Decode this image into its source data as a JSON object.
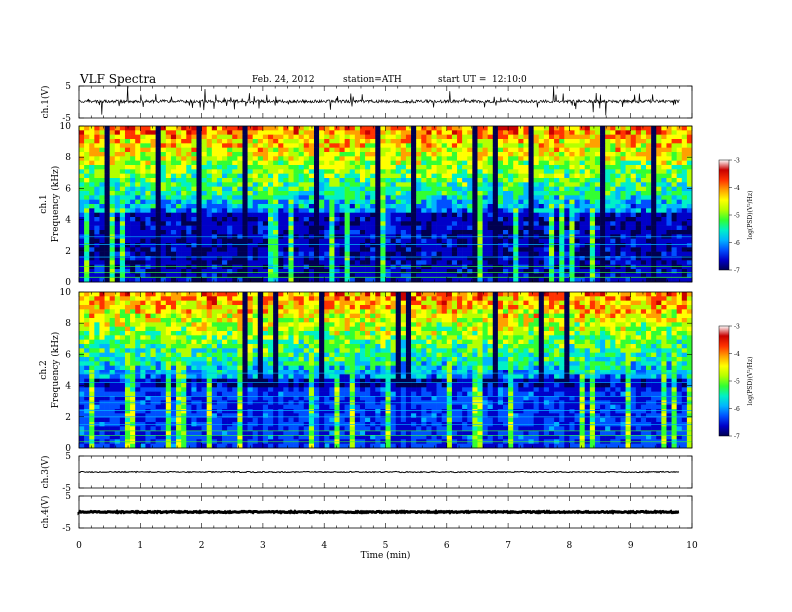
{
  "header": {
    "title": "VLF  Spectra",
    "date": "Feb. 24, 2012",
    "station": "station=ATH",
    "start_label": "start  UT  =",
    "start_value": "12:10:0"
  },
  "colors": {
    "colormap": [
      "#000050",
      "#0000c8",
      "#0050ff",
      "#00b4ff",
      "#00f0c8",
      "#32ff32",
      "#b4ff00",
      "#ffff00",
      "#ffa000",
      "#ff3200",
      "#c80000",
      "#ffffff"
    ]
  },
  "chart_data": [
    {
      "type": "line",
      "panel": "ch1-waveform",
      "ylabel": "ch.1(V)",
      "ylim": [
        -5,
        5
      ],
      "yticks": [
        5,
        -5
      ],
      "x": [
        0,
        9.8
      ],
      "baseline": 0.2,
      "xlim": [
        0,
        10
      ]
    },
    {
      "type": "heatmap",
      "panel": "ch1-spectrogram",
      "ylabel_channel": "ch.1",
      "ylabel": "Frequency  (kHz)",
      "ylim": [
        0,
        10
      ],
      "yticks": [
        0,
        2,
        4,
        6,
        8,
        10
      ],
      "xlim": [
        0,
        10
      ],
      "colorbar": {
        "label": "log(PSD)(V²/Hz)",
        "range": [
          -7,
          -3
        ],
        "ticks": [
          -3,
          -4,
          -5,
          -6,
          -7
        ]
      }
    },
    {
      "type": "heatmap",
      "panel": "ch2-spectrogram",
      "ylabel_channel": "ch.2",
      "ylabel": "Frequency  (kHz)",
      "ylim": [
        0,
        10
      ],
      "yticks": [
        0,
        2,
        4,
        6,
        8,
        10
      ],
      "xlim": [
        0,
        10
      ],
      "colorbar": {
        "label": "log(PSD)(V²/Hz)",
        "range": [
          -7,
          -3
        ],
        "ticks": [
          -3,
          -4,
          -5,
          -6,
          -7
        ]
      }
    },
    {
      "type": "line",
      "panel": "ch3-waveform",
      "ylabel": "ch.3(V)",
      "ylim": [
        -5,
        5
      ],
      "yticks": [
        5,
        -5
      ],
      "x": [
        0,
        9.8
      ],
      "values": [
        0,
        0
      ],
      "xlim": [
        0,
        10
      ]
    },
    {
      "type": "line",
      "panel": "ch4-waveform",
      "ylabel": "ch.4(V)",
      "ylim": [
        -5,
        5
      ],
      "yticks": [
        5,
        -5
      ],
      "x": [
        0,
        9.8
      ],
      "values": [
        0,
        0
      ],
      "xlim": [
        0,
        10
      ],
      "xlabel": "Time  (min)",
      "xticks": [
        0,
        1,
        2,
        3,
        4,
        5,
        6,
        7,
        8,
        9,
        10
      ]
    }
  ]
}
